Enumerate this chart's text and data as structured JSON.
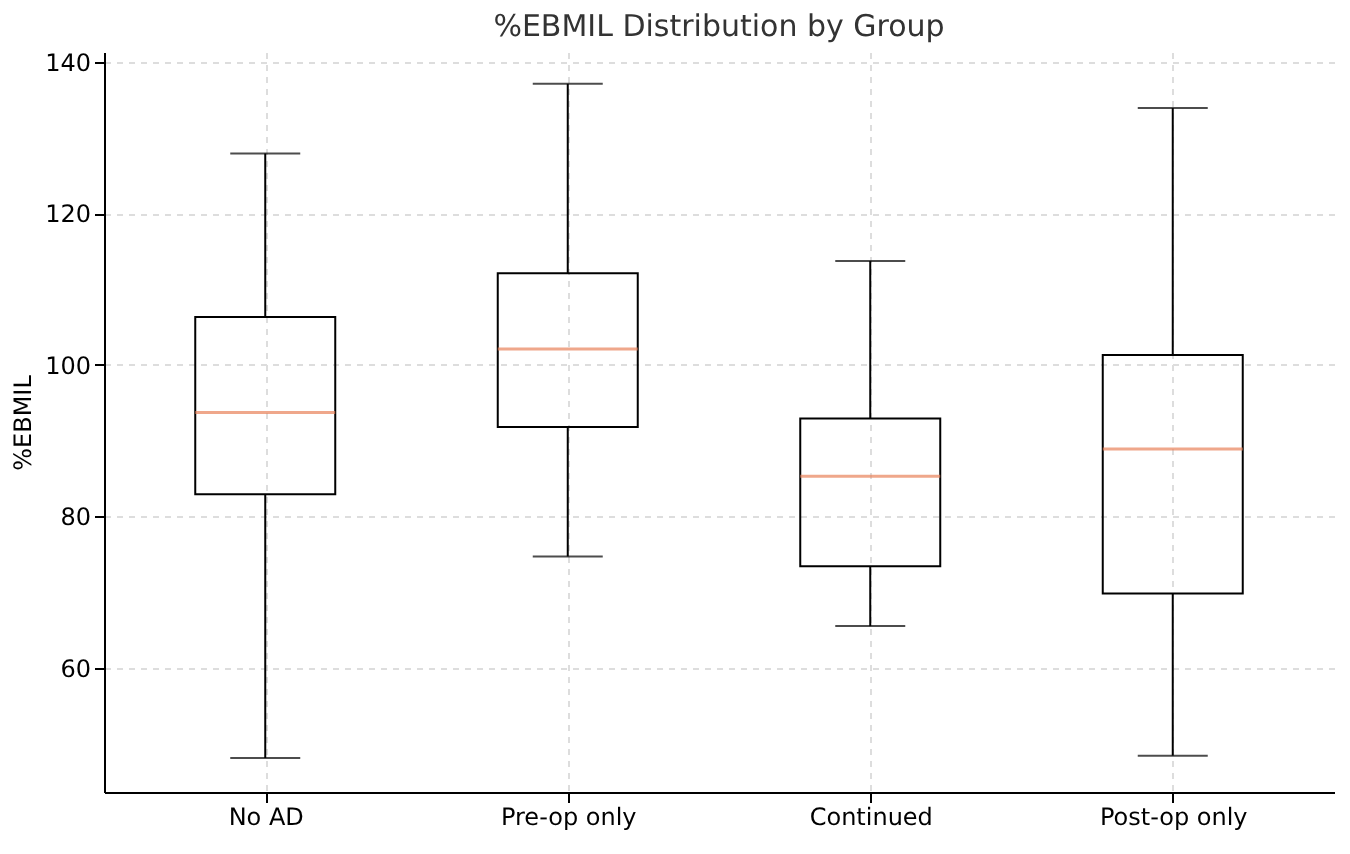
{
  "chart_data": {
    "type": "box",
    "title": "%EBMIL Distribution by Group",
    "ylabel": "%EBMIL",
    "categories": [
      "No AD",
      "Pre-op only",
      "Continued",
      "Post-op only"
    ],
    "boxes": [
      {
        "low": 48.1,
        "q1": 82.9,
        "median": 93.7,
        "q3": 106.3,
        "high": 127.9
      },
      {
        "low": 74.7,
        "q1": 91.8,
        "median": 102.1,
        "q3": 112.1,
        "high": 137.1
      },
      {
        "low": 65.5,
        "q1": 73.4,
        "median": 85.3,
        "q3": 92.9,
        "high": 113.7
      },
      {
        "low": 48.4,
        "q1": 69.8,
        "median": 88.9,
        "q3": 101.3,
        "high": 133.9
      }
    ],
    "ylim": [
      43.6,
      141.3
    ],
    "yticks": [
      60,
      80,
      100,
      120,
      140
    ],
    "grid": true
  }
}
